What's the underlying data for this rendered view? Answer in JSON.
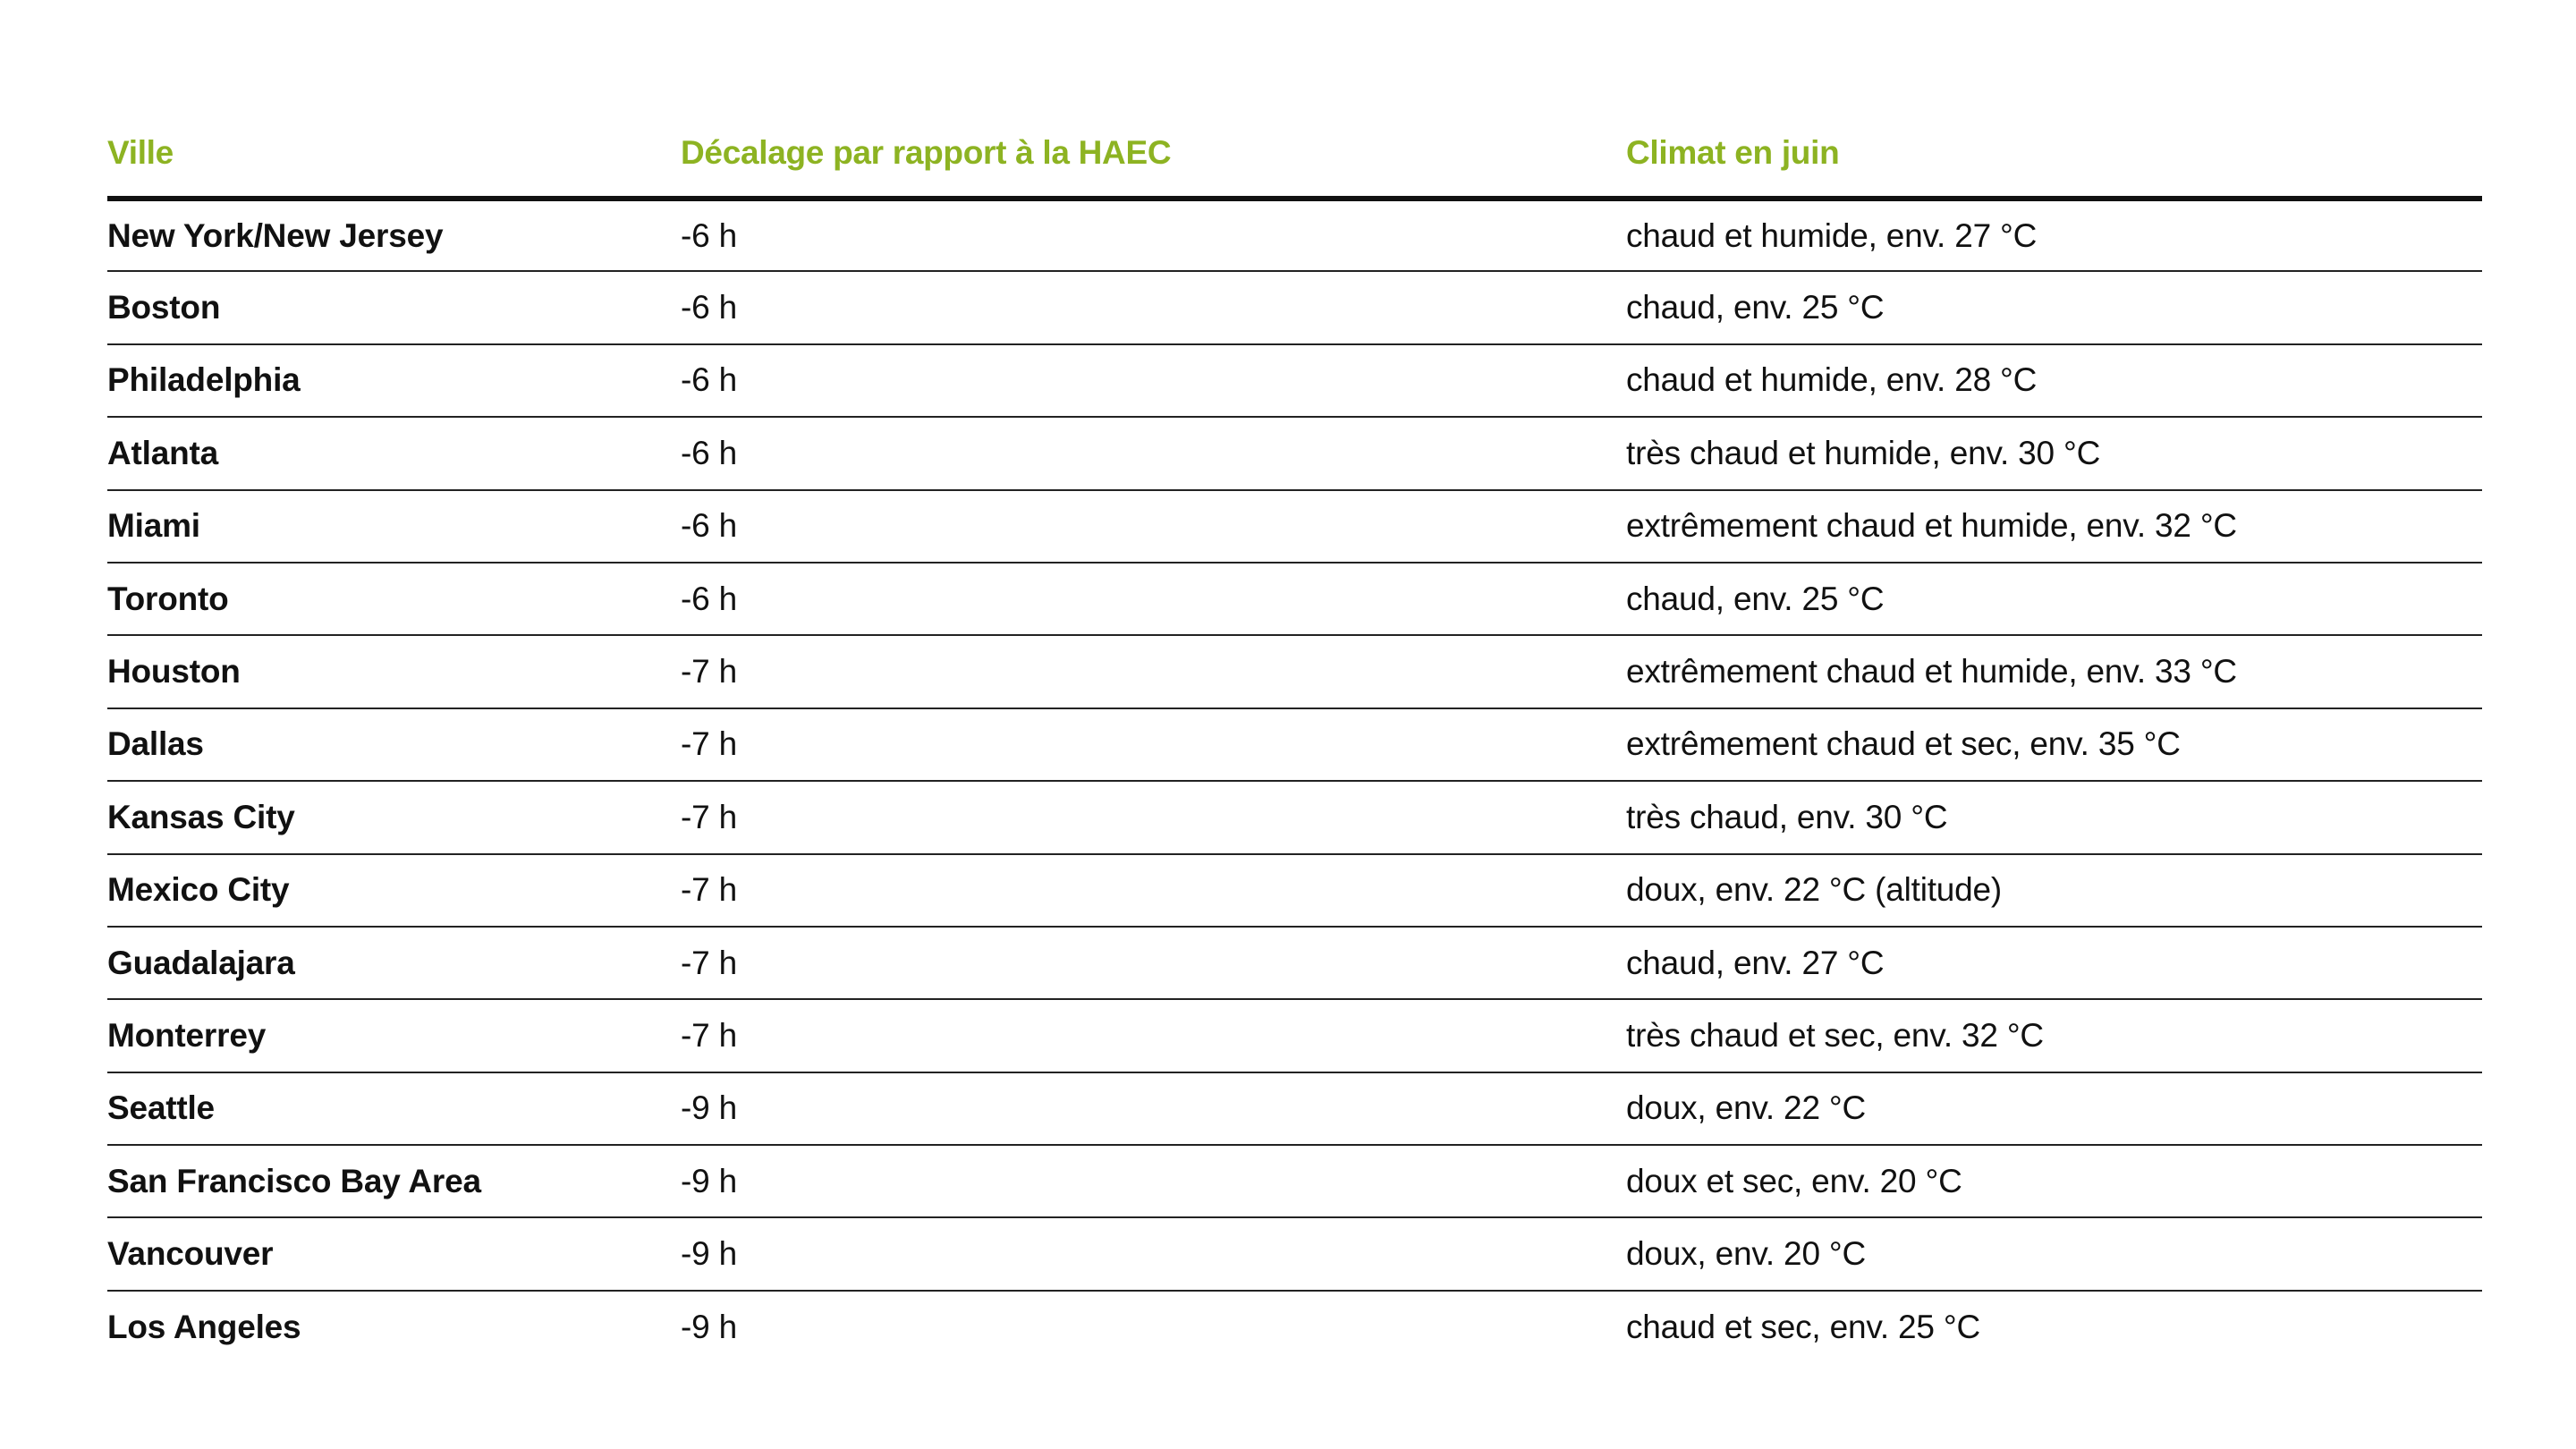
{
  "colors": {
    "header_accent": "#8db322",
    "text": "#111111",
    "rule": "#222222"
  },
  "table": {
    "headers": {
      "city": "Ville",
      "offset": "Décalage par rapport à la HAEC",
      "climate": "Climat en juin"
    },
    "rows": [
      {
        "city": "New York/New Jersey",
        "offset": "-6 h",
        "climate": "chaud et humide, env. 27 °C"
      },
      {
        "city": "Boston",
        "offset": "-6 h",
        "climate": "chaud, env. 25 °C"
      },
      {
        "city": "Philadelphia",
        "offset": "-6 h",
        "climate": "chaud et humide, env. 28 °C"
      },
      {
        "city": "Atlanta",
        "offset": "-6 h",
        "climate": "très chaud et humide, env. 30 °C"
      },
      {
        "city": "Miami",
        "offset": "-6 h",
        "climate": "extrêmement chaud et humide, env. 32 °C"
      },
      {
        "city": "Toronto",
        "offset": "-6 h",
        "climate": "chaud, env. 25 °C"
      },
      {
        "city": "Houston",
        "offset": "-7 h",
        "climate": "extrêmement chaud et humide, env. 33 °C"
      },
      {
        "city": "Dallas",
        "offset": "-7 h",
        "climate": "extrêmement chaud et sec, env. 35 °C"
      },
      {
        "city": "Kansas City",
        "offset": "-7 h",
        "climate": "très chaud, env. 30 °C"
      },
      {
        "city": "Mexico City",
        "offset": "-7 h",
        "climate": "doux, env. 22 °C (altitude)"
      },
      {
        "city": "Guadalajara",
        "offset": "-7 h",
        "climate": "chaud, env. 27 °C"
      },
      {
        "city": "Monterrey",
        "offset": "-7 h",
        "climate": "très chaud et sec, env. 32 °C"
      },
      {
        "city": "Seattle",
        "offset": "-9 h",
        "climate": "doux, env. 22 °C"
      },
      {
        "city": "San Francisco Bay Area",
        "offset": "-9 h",
        "climate": "doux et sec, env. 20 °C"
      },
      {
        "city": "Vancouver",
        "offset": "-9 h",
        "climate": "doux, env. 20 °C"
      },
      {
        "city": "Los Angeles",
        "offset": "-9 h",
        "climate": "chaud et sec, env. 25 °C"
      }
    ]
  }
}
